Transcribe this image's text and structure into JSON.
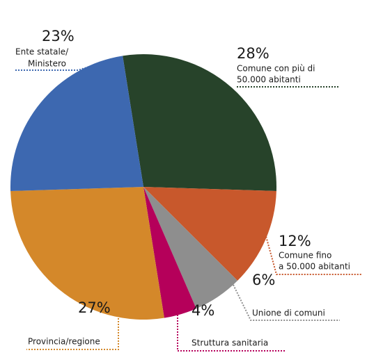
{
  "chart_data": {
    "type": "pie",
    "categories": [
      [
        "Comune con più di",
        "50.000 abitanti"
      ],
      [
        "Comune fino",
        "a 50.000 abitanti"
      ],
      [
        "Unione di comuni"
      ],
      [
        "Struttura sanitaria"
      ],
      [
        "Provincia/regione"
      ],
      [
        "Ente statale/",
        "Ministero"
      ]
    ],
    "values": [
      28,
      12,
      6,
      4,
      27,
      23
    ],
    "value_labels": [
      "28%",
      "12%",
      "6%",
      "4%",
      "27%",
      "23%"
    ],
    "colors": [
      "#27432a",
      "#c8582c",
      "#8e8e8e",
      "#b5005a",
      "#d4882a",
      "#3d68b0"
    ]
  }
}
